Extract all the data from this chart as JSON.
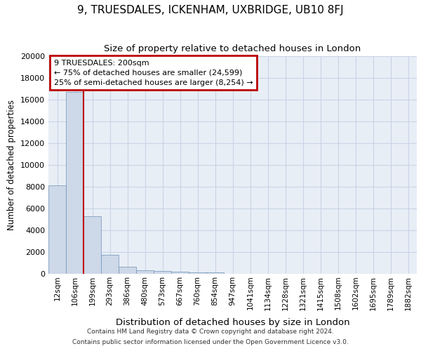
{
  "title": "9, TRUESDALES, ICKENHAM, UXBRIDGE, UB10 8FJ",
  "subtitle": "Size of property relative to detached houses in London",
  "xlabel": "Distribution of detached houses by size in London",
  "ylabel": "Number of detached properties",
  "categories": [
    "12sqm",
    "106sqm",
    "199sqm",
    "293sqm",
    "386sqm",
    "480sqm",
    "573sqm",
    "667sqm",
    "760sqm",
    "854sqm",
    "947sqm",
    "1041sqm",
    "1134sqm",
    "1228sqm",
    "1321sqm",
    "1415sqm",
    "1508sqm",
    "1602sqm",
    "1695sqm",
    "1789sqm",
    "1882sqm"
  ],
  "values": [
    8100,
    16700,
    5300,
    1750,
    650,
    330,
    250,
    200,
    150,
    120,
    0,
    0,
    0,
    0,
    0,
    0,
    0,
    0,
    0,
    0,
    0
  ],
  "bar_color": "#cdd8e8",
  "bar_edge_color": "#7094b8",
  "vline_color": "#bb0000",
  "annotation_text": "9 TRUESDALES: 200sqm\n← 75% of detached houses are smaller (24,599)\n25% of semi-detached houses are larger (8,254) →",
  "annotation_box_edgecolor": "#bb0000",
  "ylim": [
    0,
    20000
  ],
  "yticks": [
    0,
    2000,
    4000,
    6000,
    8000,
    10000,
    12000,
    14000,
    16000,
    18000,
    20000
  ],
  "grid_color": "#c8d4e4",
  "bg_color": "#e8eef6",
  "footnote1": "Contains HM Land Registry data © Crown copyright and database right 2024.",
  "footnote2": "Contains public sector information licensed under the Open Government Licence v3.0."
}
